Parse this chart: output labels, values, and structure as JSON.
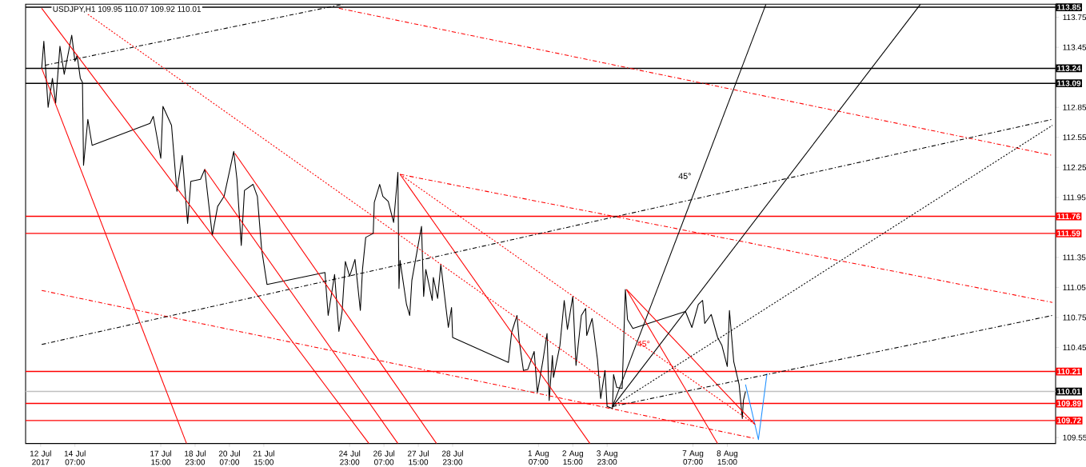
{
  "chart_data": {
    "type": "line",
    "title": "USDJPY,H1  109.95 110.07 109.92 110.01",
    "xlim": [
      "2017-07-12T09:00",
      "2017-08-21T09:00"
    ],
    "ylim": [
      109.49,
      113.88
    ],
    "xticks": [
      {
        "value": "2017-07-12T23:00",
        "label": "12 Jul 2017"
      },
      {
        "value": "2017-07-14T07:00",
        "label": "14 Jul 07:00"
      },
      {
        "value": "2017-07-17T15:00",
        "label": "17 Jul 15:00"
      },
      {
        "value": "2017-07-18T23:00",
        "label": "18 Jul 23:00"
      },
      {
        "value": "2017-07-20T07:00",
        "label": "20 Jul 07:00"
      },
      {
        "value": "2017-07-21T15:00",
        "label": "21 Jul 15:00"
      },
      {
        "value": "2017-07-24T23:00",
        "label": "24 Jul 23:00"
      },
      {
        "value": "2017-07-26T07:00",
        "label": "26 Jul 07:00"
      },
      {
        "value": "2017-07-27T15:00",
        "label": "27 Jul 15:00"
      },
      {
        "value": "2017-07-28T23:00",
        "label": "28 Jul 23:00"
      },
      {
        "value": "2017-08-01T07:00",
        "label": "1 Aug 07:00"
      },
      {
        "value": "2017-08-02T15:00",
        "label": "2 Aug 15:00"
      },
      {
        "value": "2017-08-03T23:00",
        "label": "3 Aug 23:00"
      },
      {
        "value": "2017-08-07T07:00",
        "label": "7 Aug 07:00"
      },
      {
        "value": "2017-08-08T15:00",
        "label": "8 Aug 15:00"
      }
    ],
    "yticks": [
      113.75,
      113.45,
      112.85,
      112.55,
      112.25,
      111.95,
      111.35,
      111.05,
      110.75,
      110.45,
      109.55
    ],
    "marker": "none",
    "series": [
      {
        "color": "#000000",
        "line_style": "solid",
        "x": [
          "2017-07-13T00:00",
          "2017-07-13T02:00",
          "2017-07-13T06:00",
          "2017-07-13T10:00",
          "2017-07-13T13:00",
          "2017-07-13T17:00",
          "2017-07-13T21:00",
          "2017-07-14T04:00",
          "2017-07-14T07:00",
          "2017-07-14T09:00",
          "2017-07-14T12:00",
          "2017-07-14T14:00",
          "2017-07-14T15:00",
          "2017-07-14T19:00",
          "2017-07-14T23:00",
          "2017-07-17T05:00",
          "2017-07-17T08:00",
          "2017-07-17T15:00",
          "2017-07-17T17:00",
          "2017-07-18T01:00",
          "2017-07-18T06:00",
          "2017-07-18T11:00",
          "2017-07-18T16:00",
          "2017-07-18T19:00",
          "2017-07-19T04:00",
          "2017-07-19T08:00",
          "2017-07-19T15:00",
          "2017-07-19T20:00",
          "2017-07-20T02:00",
          "2017-07-20T11:00",
          "2017-07-20T14:00",
          "2017-07-20T18:00",
          "2017-07-20T21:00",
          "2017-07-21T05:00",
          "2017-07-21T09:00",
          "2017-07-21T13:00",
          "2017-07-21T18:00",
          "2017-07-24T00:00",
          "2017-07-24T03:00",
          "2017-07-24T09:00",
          "2017-07-24T13:00",
          "2017-07-24T16:00",
          "2017-07-24T19:00",
          "2017-07-24T23:00",
          "2017-07-25T04:00",
          "2017-07-25T09:00",
          "2017-07-25T11:00",
          "2017-07-25T14:00",
          "2017-07-25T21:00",
          "2017-07-25T22:00",
          "2017-07-26T03:00",
          "2017-07-26T06:00",
          "2017-07-26T11:00",
          "2017-07-26T16:00",
          "2017-07-26T20:00",
          "2017-07-26T21:00",
          "2017-07-26T22:00",
          "2017-07-27T04:00",
          "2017-07-27T07:00",
          "2017-07-27T09:00",
          "2017-07-27T18:00",
          "2017-07-27T20:00",
          "2017-07-27T22:00",
          "2017-07-28T04:00",
          "2017-07-28T05:00",
          "2017-07-28T09:00",
          "2017-07-28T12:00",
          "2017-07-28T19:00",
          "2017-07-28T22:00",
          "2017-07-28T23:00",
          "2017-07-31T03:00",
          "2017-07-31T06:00",
          "2017-07-31T11:00",
          "2017-07-31T13:00",
          "2017-07-31T17:00",
          "2017-07-31T21:00",
          "2017-08-01T03:00",
          "2017-08-01T06:00",
          "2017-08-01T11:00",
          "2017-08-01T15:00",
          "2017-08-01T17:00",
          "2017-08-01T20:00",
          "2017-08-01T21:00",
          "2017-08-02T03:00",
          "2017-08-02T07:00",
          "2017-08-02T10:00",
          "2017-08-02T15:00",
          "2017-08-02T18:00",
          "2017-08-02T23:00",
          "2017-08-03T03:00",
          "2017-08-03T04:00",
          "2017-08-03T09:00",
          "2017-08-03T14:00",
          "2017-08-03T17:00",
          "2017-08-03T21:00",
          "2017-08-03T23:00",
          "2017-08-04T04:00",
          "2017-08-04T05:00",
          "2017-08-04T08:00",
          "2017-08-04T13:00",
          "2017-08-04T16:00",
          "2017-08-04T18:00",
          "2017-08-04T23:00",
          "2017-08-07T00:00",
          "2017-08-07T06:00",
          "2017-08-07T12:00",
          "2017-08-07T16:00",
          "2017-08-07T18:00",
          "2017-08-08T00:00",
          "2017-08-08T06:00",
          "2017-08-08T10:00",
          "2017-08-08T15:00",
          "2017-08-08T17:00",
          "2017-08-08T21:00",
          "2017-08-09T02:00",
          "2017-08-09T05:00",
          "2017-08-09T06:00",
          "2017-08-09T08:00"
        ],
        "values": [
          113.24,
          113.51,
          112.85,
          113.14,
          112.89,
          113.46,
          113.18,
          113.57,
          113.31,
          113.37,
          113.14,
          113.1,
          112.27,
          112.73,
          112.47,
          112.69,
          112.76,
          112.34,
          112.86,
          112.67,
          112.01,
          112.37,
          111.69,
          112.11,
          112.13,
          112.23,
          111.57,
          111.86,
          111.96,
          112.41,
          112.13,
          111.47,
          112.02,
          112.08,
          111.96,
          111.43,
          111.08,
          111.2,
          110.77,
          111.18,
          110.61,
          110.81,
          111.31,
          111.16,
          111.33,
          110.82,
          111.23,
          111.55,
          111.59,
          111.9,
          112.08,
          111.96,
          111.91,
          111.7,
          112.2,
          111.04,
          111.32,
          110.88,
          110.77,
          111.12,
          111.66,
          110.96,
          111.23,
          110.92,
          111.15,
          110.94,
          111.28,
          110.65,
          110.85,
          110.55,
          110.3,
          110.6,
          110.77,
          110.52,
          110.22,
          110.23,
          110.41,
          110.0,
          110.31,
          110.59,
          109.92,
          110.37,
          110.15,
          110.47,
          110.92,
          110.63,
          110.96,
          110.27,
          110.77,
          110.84,
          110.57,
          110.74,
          110.33,
          109.94,
          110.22,
          109.86,
          109.84,
          110.18,
          110.05,
          110.04,
          111.03,
          110.73,
          110.64,
          110.81,
          110.65,
          110.88,
          110.92,
          110.69,
          110.78,
          110.55,
          110.47,
          110.26,
          110.82,
          110.31,
          110.08,
          109.74,
          109.92,
          110.01
        ]
      },
      {
        "color": "#1e90ff",
        "line_style": "solid",
        "x": [
          "2017-08-09T08:00",
          "2017-08-09T20:00",
          "2017-08-10T04:00"
        ],
        "values": [
          110.08,
          109.53,
          110.19
        ]
      },
      {
        "color": "#ff0000",
        "line_style": "solid",
        "x": [
          "2017-07-13T00:00",
          "2017-07-18T15:00"
        ],
        "values": [
          113.24,
          109.49
        ]
      },
      {
        "color": "#ff0000",
        "line_style": "solid",
        "x": [
          "2017-07-13T00:00",
          "2017-07-25T17:00"
        ],
        "values": [
          113.84,
          109.49
        ]
      },
      {
        "color": "#ff0000",
        "line_style": "solid",
        "x": [
          "2017-07-19T08:00",
          "2017-07-26T20:00"
        ],
        "values": [
          112.23,
          109.49
        ]
      },
      {
        "color": "#ff0000",
        "line_style": "solid",
        "x": [
          "2017-07-20T12:00",
          "2017-07-28T08:00"
        ],
        "values": [
          112.39,
          109.49
        ]
      },
      {
        "color": "#ff0000",
        "line_style": "solid",
        "x": [
          "2017-07-26T22:00",
          "2017-08-03T07:00"
        ],
        "values": [
          112.18,
          109.49
        ]
      },
      {
        "color": "#ff0000",
        "line_style": "solid",
        "x": [
          "2017-08-04T17:00",
          "2017-08-09T17:00"
        ],
        "values": [
          111.03,
          109.68
        ]
      },
      {
        "color": "#ff0000",
        "line_style": "solid",
        "x": [
          "2017-08-04T17:00",
          "2017-08-08T06:00"
        ],
        "values": [
          111.03,
          109.49
        ]
      },
      {
        "color": "#ff0000",
        "line_style": "dotted",
        "x": [
          "2017-07-14T19:00",
          "2017-08-03T17:00"
        ],
        "values": [
          113.78,
          110.15
        ]
      },
      {
        "color": "#ff0000",
        "line_style": "dashed",
        "x": [
          "2017-07-26T22:00",
          "2017-08-21T06:00"
        ],
        "values": [
          112.18,
          110.9
        ]
      },
      {
        "color": "#ff0000",
        "line_style": "dotted",
        "x": [
          "2017-07-26T22:00",
          "2017-08-09T17:00"
        ],
        "values": [
          112.18,
          109.68
        ]
      },
      {
        "color": "#ff0000",
        "line_style": "dashed",
        "x": [
          "2017-07-24T13:00",
          "2017-08-21T06:00"
        ],
        "values": [
          113.84,
          112.37
        ]
      },
      {
        "color": "#ff0000",
        "line_style": "dashed",
        "x": [
          "2017-07-13T00:00",
          "2017-08-09T17:00"
        ],
        "values": [
          111.02,
          109.54
        ]
      },
      {
        "color": "#000000",
        "line_style": "dashed",
        "x": [
          "2017-07-13T00:00",
          "2017-08-21T06:00"
        ],
        "values": [
          110.48,
          112.73
        ]
      },
      {
        "color": "#000000",
        "line_style": "dashed",
        "x": [
          "2017-07-13T03:00",
          "2017-07-24T17:00"
        ],
        "values": [
          113.27,
          113.88
        ]
      },
      {
        "color": "#000000",
        "line_style": "dashed",
        "x": [
          "2017-08-04T04:00",
          "2017-08-21T06:00"
        ],
        "values": [
          109.86,
          110.77
        ]
      },
      {
        "color": "#000000",
        "line_style": "dotted",
        "x": [
          "2017-08-04T04:00",
          "2017-08-21T06:00"
        ],
        "values": [
          109.86,
          112.67
        ]
      },
      {
        "color": "#000000",
        "line_style": "solid",
        "x": [
          "2017-08-04T04:00",
          "2017-08-10T03:00"
        ],
        "values": [
          109.86,
          113.88
        ]
      },
      {
        "color": "#000000",
        "line_style": "solid",
        "x": [
          "2017-08-04T04:00",
          "2017-08-16T03:00"
        ],
        "values": [
          109.86,
          113.88
        ]
      }
    ],
    "ref_lines": [
      {
        "axis": "y",
        "value": 113.85,
        "label": "113.85",
        "color": "#000000",
        "line_style": "solid"
      },
      {
        "axis": "y",
        "value": 113.24,
        "label": "113.24",
        "color": "#000000",
        "line_style": "solid"
      },
      {
        "axis": "y",
        "value": 113.09,
        "label": "113.09",
        "color": "#000000",
        "line_style": "solid"
      },
      {
        "axis": "y",
        "value": 111.76,
        "label": "111.76",
        "color": "#ff0000",
        "line_style": "solid"
      },
      {
        "axis": "y",
        "value": 111.59,
        "label": "111.59",
        "color": "#ff0000",
        "line_style": "solid"
      },
      {
        "axis": "y",
        "value": 110.21,
        "label": "110.21",
        "color": "#ff0000",
        "line_style": "solid"
      },
      {
        "axis": "y",
        "value": 110.01,
        "label": "110.01",
        "color": "#c0c0c0",
        "line_style": "solid"
      },
      {
        "axis": "y",
        "value": 109.89,
        "label": "109.89",
        "color": "#ff0000",
        "line_style": "solid"
      },
      {
        "axis": "y",
        "value": 109.72,
        "label": "109.72",
        "color": "#ff0000",
        "line_style": "solid"
      }
    ],
    "annotations": [
      "45°",
      "45°"
    ]
  }
}
